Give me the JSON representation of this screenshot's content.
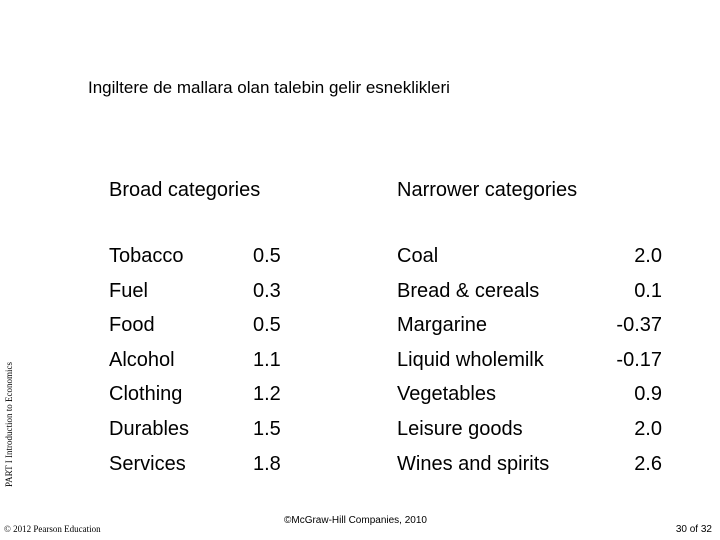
{
  "title": "Ingiltere de mallara olan talebin gelir esneklikleri",
  "side_label": "PART I Introduction to Economics",
  "broad": {
    "header": "Broad categories",
    "items": [
      "Tobacco",
      "Fuel",
      "Food",
      "Alcohol",
      "Clothing",
      "Durables",
      "Services"
    ],
    "values": [
      "0.5",
      "0.3",
      "0.5",
      "1.1",
      "1.2",
      "1.5",
      "1.8"
    ]
  },
  "narrow": {
    "header": "Narrower categories",
    "items": [
      "Coal",
      "Bread & cereals",
      "Margarine",
      "Liquid wholemilk",
      "Vegetables",
      "Leisure goods",
      "Wines and spirits"
    ],
    "values": [
      "2.0",
      "0.1",
      "-0.37",
      "-0.17",
      "0.9",
      "2.0",
      "2.6"
    ]
  },
  "footer": {
    "mcgraw": "©McGraw-Hill Companies, 2010",
    "pearson": "© 2012 Pearson Education",
    "page": "30 of 32"
  }
}
